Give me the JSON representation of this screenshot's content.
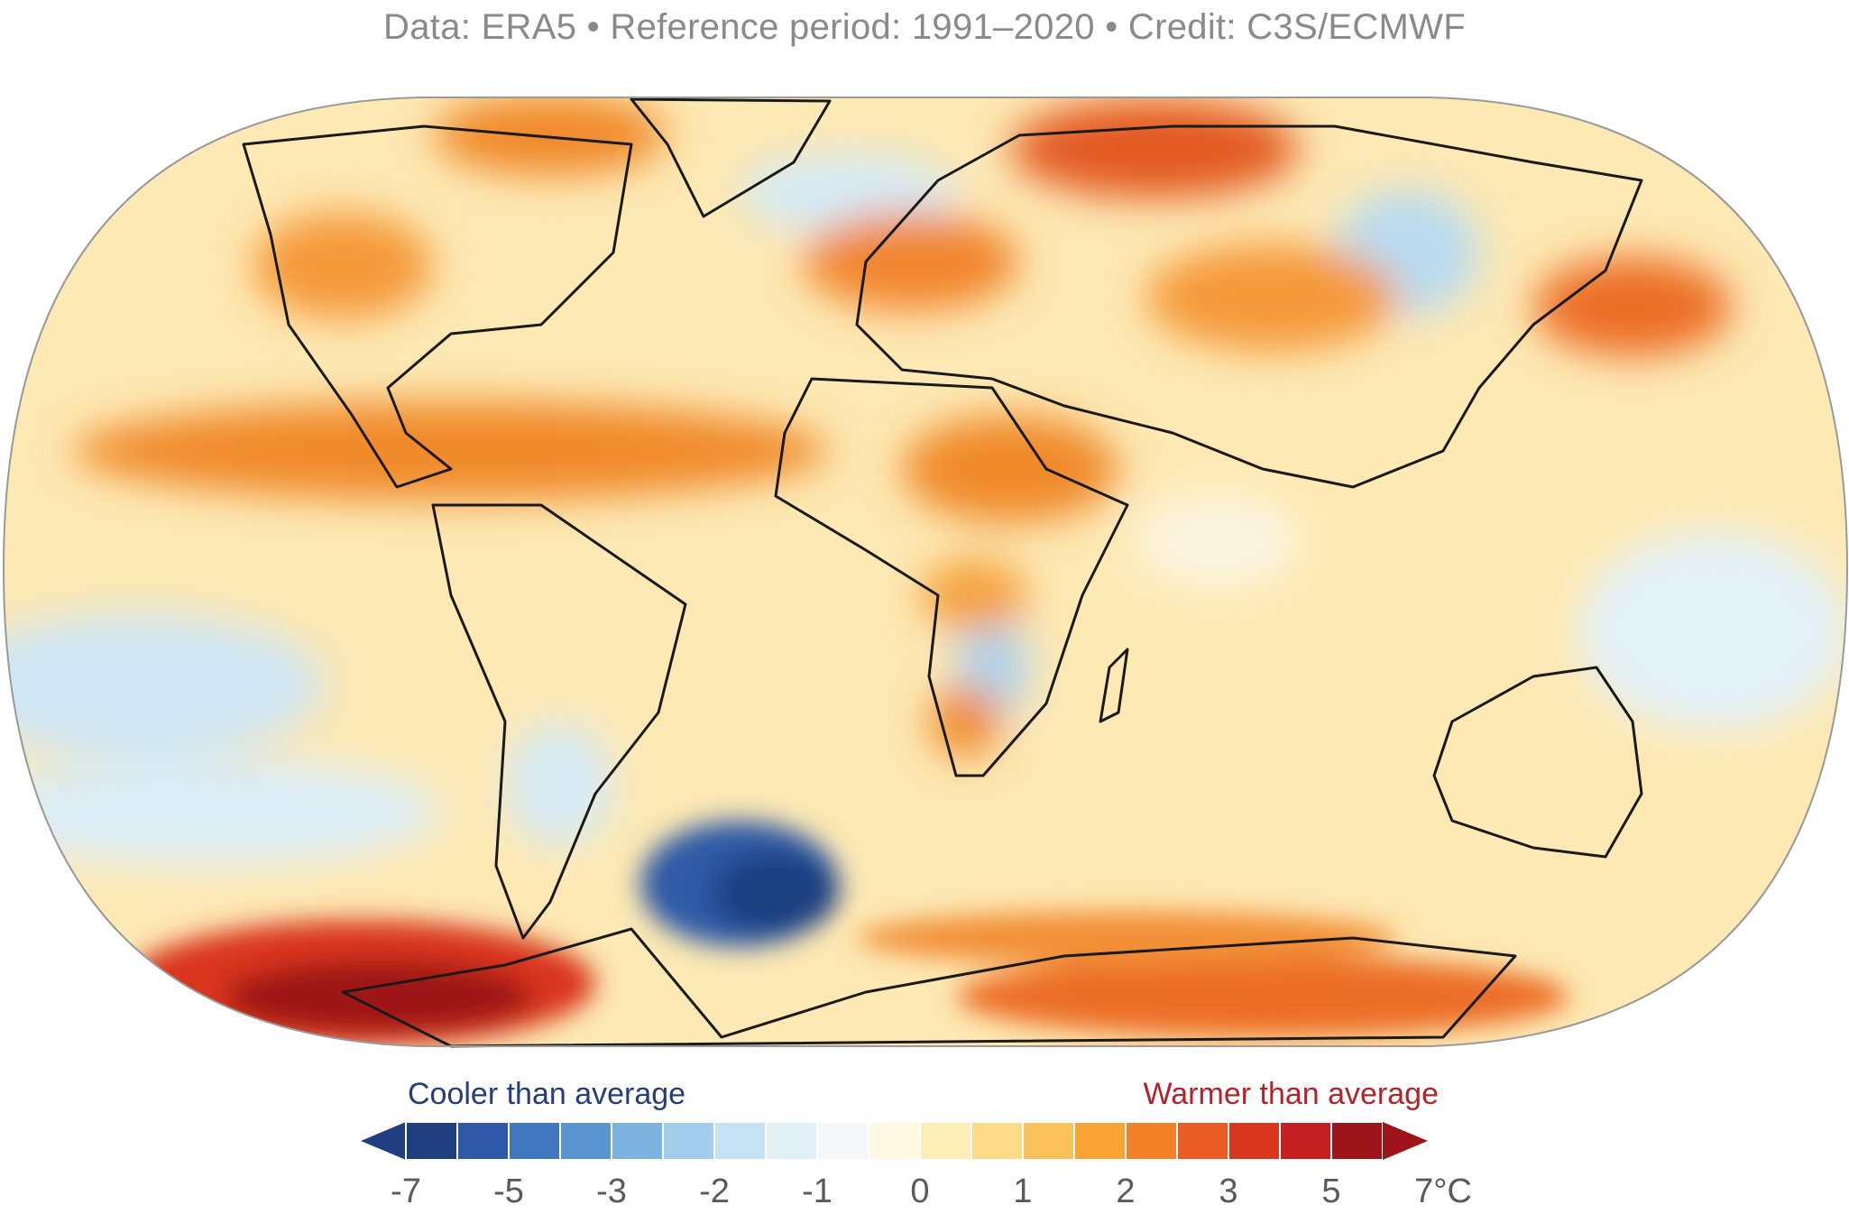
{
  "header": {
    "credit": "Data: ERA5 • Reference period: 1991–2020 • Credit: C3S/ECMWF"
  },
  "legend": {
    "cool_label": "Cooler than average",
    "warm_label": "Warmer than average",
    "ticks": [
      "-7",
      "-5",
      "-3",
      "-2",
      "-1",
      "0",
      "1",
      "2",
      "3",
      "5",
      "7°C"
    ],
    "colors": [
      "#1f3f80",
      "#2f59a8",
      "#4177be",
      "#5b95cf",
      "#7db3df",
      "#a3cdec",
      "#c5e1f3",
      "#e2f0f8",
      "#f4f8fb",
      "#fff9e4",
      "#fdeeb5",
      "#fcdb87",
      "#fbc25c",
      "#f9a334",
      "#f38127",
      "#e95d24",
      "#d9361f",
      "#c41f21",
      "#9e1519"
    ]
  }
}
